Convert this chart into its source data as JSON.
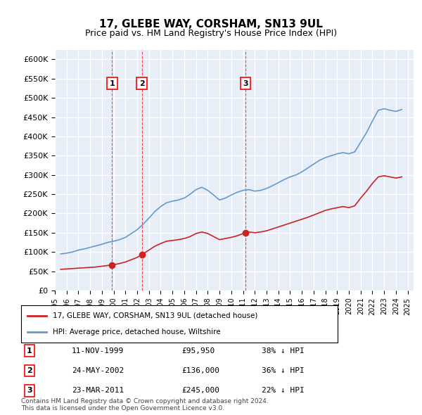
{
  "title": "17, GLEBE WAY, CORSHAM, SN13 9UL",
  "subtitle": "Price paid vs. HM Land Registry's House Price Index (HPI)",
  "background_color": "#ffffff",
  "plot_bg_color": "#e8eef8",
  "grid_color": "#ffffff",
  "ylim": [
    0,
    625000
  ],
  "yticks": [
    0,
    50000,
    100000,
    150000,
    200000,
    250000,
    300000,
    350000,
    400000,
    450000,
    500000,
    550000,
    600000
  ],
  "ylabel_format": "£{0}K",
  "transactions": [
    {
      "label": "1",
      "date": "11-NOV-1999",
      "price": 95950,
      "pct": "38%",
      "x_year": 1999.87
    },
    {
      "label": "2",
      "date": "24-MAY-2002",
      "price": 136000,
      "pct": "36%",
      "x_year": 2002.39
    },
    {
      "label": "3",
      "date": "23-MAR-2011",
      "price": 245000,
      "pct": "22%",
      "x_year": 2011.22
    }
  ],
  "hpi_color": "#6699cc",
  "price_color": "#cc2222",
  "legend_label_price": "17, GLEBE WAY, CORSHAM, SN13 9UL (detached house)",
  "legend_label_hpi": "HPI: Average price, detached house, Wiltshire",
  "footer_line1": "Contains HM Land Registry data © Crown copyright and database right 2024.",
  "footer_line2": "This data is licensed under the Open Government Licence v3.0.",
  "hpi_data": {
    "years": [
      1995.5,
      1996.0,
      1996.5,
      1997.0,
      1997.5,
      1998.0,
      1998.5,
      1999.0,
      1999.5,
      2000.0,
      2000.5,
      2001.0,
      2001.5,
      2002.0,
      2002.5,
      2003.0,
      2003.5,
      2004.0,
      2004.5,
      2005.0,
      2005.5,
      2006.0,
      2006.5,
      2007.0,
      2007.5,
      2008.0,
      2008.5,
      2009.0,
      2009.5,
      2010.0,
      2010.5,
      2011.0,
      2011.5,
      2012.0,
      2012.5,
      2013.0,
      2013.5,
      2014.0,
      2014.5,
      2015.0,
      2015.5,
      2016.0,
      2016.5,
      2017.0,
      2017.5,
      2018.0,
      2018.5,
      2019.0,
      2019.5,
      2020.0,
      2020.5,
      2021.0,
      2021.5,
      2022.0,
      2022.5,
      2023.0,
      2023.5,
      2024.0,
      2024.5
    ],
    "values": [
      95000,
      97000,
      100000,
      105000,
      108000,
      112000,
      116000,
      120000,
      125000,
      128000,
      132000,
      138000,
      148000,
      158000,
      172000,
      188000,
      205000,
      218000,
      228000,
      232000,
      235000,
      240000,
      250000,
      262000,
      268000,
      260000,
      248000,
      235000,
      240000,
      248000,
      255000,
      260000,
      262000,
      258000,
      260000,
      265000,
      272000,
      280000,
      288000,
      295000,
      300000,
      308000,
      318000,
      328000,
      338000,
      345000,
      350000,
      355000,
      358000,
      355000,
      360000,
      385000,
      410000,
      440000,
      468000,
      472000,
      468000,
      465000,
      470000
    ]
  },
  "price_data": {
    "years": [
      1995.5,
      1996.0,
      1996.5,
      1997.0,
      1997.5,
      1998.0,
      1998.5,
      1999.0,
      1999.5,
      2000.0,
      2000.5,
      2001.0,
      2001.5,
      2002.0,
      2002.5,
      2003.0,
      2003.5,
      2004.0,
      2004.5,
      2005.0,
      2005.5,
      2006.0,
      2006.5,
      2007.0,
      2007.5,
      2008.0,
      2008.5,
      2009.0,
      2009.5,
      2010.0,
      2010.5,
      2011.0,
      2011.5,
      2012.0,
      2012.5,
      2013.0,
      2013.5,
      2014.0,
      2014.5,
      2015.0,
      2015.5,
      2016.0,
      2016.5,
      2017.0,
      2017.5,
      2018.0,
      2018.5,
      2019.0,
      2019.5,
      2020.0,
      2020.5,
      2021.0,
      2021.5,
      2022.0,
      2022.5,
      2023.0,
      2023.5,
      2024.0,
      2024.5
    ],
    "values": [
      55000,
      56000,
      57000,
      58000,
      59000,
      60000,
      61000,
      63000,
      65000,
      67000,
      70000,
      74000,
      80000,
      86000,
      95000,
      105000,
      115000,
      122000,
      128000,
      130000,
      132000,
      135000,
      140000,
      148000,
      152000,
      148000,
      140000,
      132000,
      135000,
      138000,
      142000,
      148000,
      152000,
      150000,
      152000,
      155000,
      160000,
      165000,
      170000,
      175000,
      180000,
      185000,
      190000,
      196000,
      202000,
      208000,
      212000,
      215000,
      218000,
      215000,
      220000,
      240000,
      258000,
      278000,
      295000,
      298000,
      295000,
      292000,
      295000
    ]
  },
  "xlim": [
    1995.0,
    2025.5
  ],
  "xtick_years": [
    1995,
    1996,
    1997,
    1998,
    1999,
    2000,
    2001,
    2002,
    2003,
    2004,
    2005,
    2006,
    2007,
    2008,
    2009,
    2010,
    2011,
    2012,
    2013,
    2014,
    2015,
    2016,
    2017,
    2018,
    2019,
    2020,
    2021,
    2022,
    2023,
    2024,
    2025
  ]
}
